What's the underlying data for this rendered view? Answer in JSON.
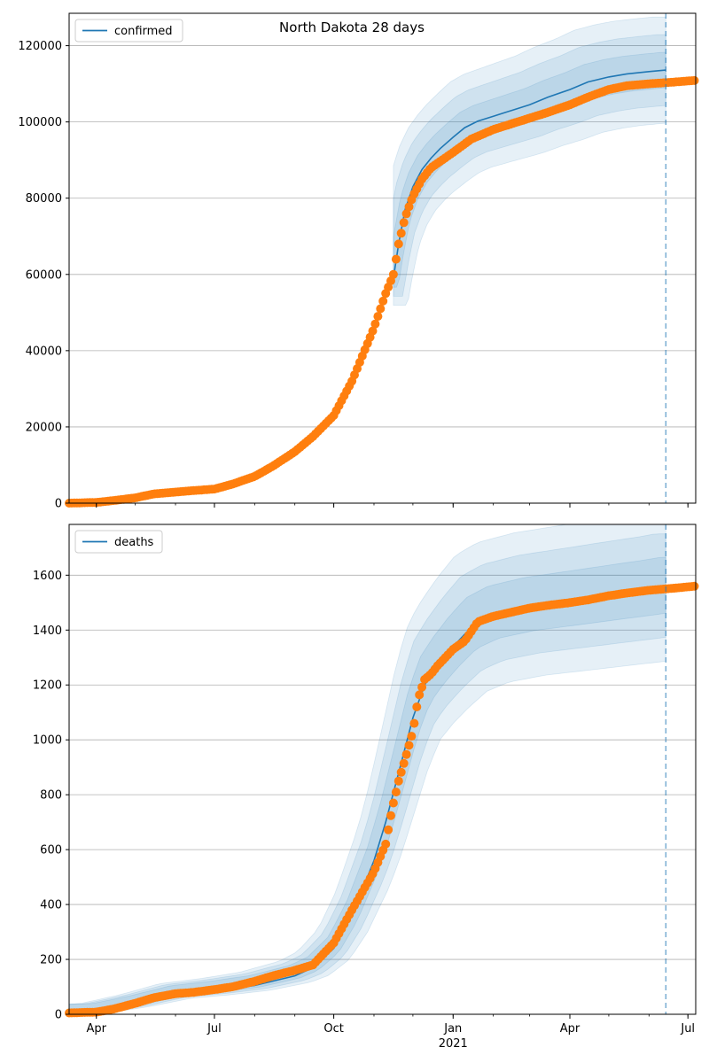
{
  "figure": {
    "title": "North Dakota 28 days"
  },
  "chart_data": [
    {
      "type": "line",
      "xlim": [
        "2020-03-11",
        "2021-07-07"
      ],
      "ylim": [
        0,
        128500
      ],
      "yticks": [
        0,
        20000,
        40000,
        60000,
        80000,
        100000,
        120000
      ],
      "xticks": [
        {
          "date": "2020-04-01",
          "label": ""
        },
        {
          "date": "2020-07-01",
          "label": ""
        },
        {
          "date": "2020-10-01",
          "label": ""
        },
        {
          "date": "2021-01-01",
          "label": ""
        },
        {
          "date": "2021-04-01",
          "label": ""
        },
        {
          "date": "2021-07-01",
          "label": ""
        }
      ],
      "grid": "horizontal",
      "legend_position": "top-left",
      "forecast_start": "2021-06-14",
      "series": [
        {
          "name": "confirmed",
          "kind": "model",
          "color": "#1f77b4",
          "x": [
            "2020-11-16",
            "2020-11-20",
            "2020-11-25",
            "2020-12-01",
            "2020-12-08",
            "2020-12-15",
            "2020-12-22",
            "2021-01-01",
            "2021-01-10",
            "2021-01-20",
            "2021-02-01",
            "2021-02-15",
            "2021-03-01",
            "2021-03-15",
            "2021-04-01",
            "2021-04-15",
            "2021-05-01",
            "2021-05-15",
            "2021-06-01",
            "2021-06-14"
          ],
          "y": [
            59000,
            68000,
            77000,
            83000,
            87500,
            90500,
            93000,
            96000,
            98500,
            100200,
            101500,
            103000,
            104500,
            106500,
            108500,
            110500,
            111800,
            112600,
            113200,
            113600
          ]
        },
        {
          "name": "",
          "kind": "observed",
          "color": "#ff7f0e",
          "x": [
            "2020-03-11",
            "2020-04-01",
            "2020-04-15",
            "2020-05-01",
            "2020-05-15",
            "2020-06-01",
            "2020-06-15",
            "2020-07-01",
            "2020-07-15",
            "2020-08-01",
            "2020-08-15",
            "2020-09-01",
            "2020-09-15",
            "2020-10-01",
            "2020-10-15",
            "2020-11-01",
            "2020-11-10",
            "2020-11-16",
            "2020-11-20",
            "2020-11-25",
            "2020-12-01",
            "2020-12-08",
            "2020-12-15",
            "2021-01-01",
            "2021-01-15",
            "2021-02-01",
            "2021-02-15",
            "2021-03-01",
            "2021-03-15",
            "2021-04-01",
            "2021-04-15",
            "2021-05-01",
            "2021-05-15",
            "2021-06-01",
            "2021-06-14",
            "2021-07-07"
          ],
          "y": [
            0,
            200,
            700,
            1400,
            2400,
            2900,
            3300,
            3700,
            5000,
            7000,
            9700,
            13500,
            17500,
            23000,
            32000,
            46000,
            55000,
            60000,
            68000,
            75000,
            80500,
            85000,
            88000,
            92000,
            95500,
            98000,
            99500,
            101000,
            102500,
            104500,
            106500,
            108500,
            109500,
            110000,
            110300,
            110900
          ]
        }
      ]
    },
    {
      "type": "line",
      "xlim": [
        "2020-03-11",
        "2021-07-07"
      ],
      "ylim": [
        0,
        1785
      ],
      "yticks": [
        0,
        200,
        400,
        600,
        800,
        1000,
        1200,
        1400,
        1600
      ],
      "xticks": [
        {
          "date": "2020-04-01",
          "label": "Apr"
        },
        {
          "date": "2020-07-01",
          "label": "Jul"
        },
        {
          "date": "2020-10-01",
          "label": "Oct"
        },
        {
          "date": "2021-01-01",
          "label": "Jan"
        },
        {
          "date": "2021-04-01",
          "label": "Apr"
        },
        {
          "date": "2021-07-01",
          "label": "Jul"
        }
      ],
      "year_label": {
        "date": "2021-01-01",
        "label": "2021"
      },
      "grid": "horizontal",
      "legend_position": "top-left",
      "forecast_start": "2021-06-14",
      "series": [
        {
          "name": "deaths",
          "kind": "model",
          "color": "#1f77b4",
          "x": [
            "2020-03-11",
            "2020-04-01",
            "2020-05-01",
            "2020-06-01",
            "2020-07-01",
            "2020-08-01",
            "2020-09-01",
            "2020-09-15",
            "2020-10-01",
            "2020-10-15",
            "2020-11-01",
            "2020-11-10",
            "2020-11-20",
            "2020-12-01",
            "2020-12-10",
            "2020-12-20",
            "2021-01-01",
            "2021-01-15",
            "2021-02-01",
            "2021-03-01",
            "2021-04-01",
            "2021-05-01",
            "2021-06-01",
            "2021-06-14"
          ],
          "y": [
            5,
            8,
            35,
            70,
            85,
            105,
            140,
            170,
            240,
            360,
            560,
            700,
            880,
            1080,
            1200,
            1270,
            1340,
            1410,
            1450,
            1480,
            1500,
            1520,
            1540,
            1550
          ]
        },
        {
          "name": "",
          "kind": "observed",
          "color": "#ff7f0e",
          "x": [
            "2020-03-11",
            "2020-04-01",
            "2020-04-15",
            "2020-05-01",
            "2020-05-15",
            "2020-06-01",
            "2020-06-15",
            "2020-07-01",
            "2020-07-15",
            "2020-08-01",
            "2020-08-15",
            "2020-09-01",
            "2020-09-15",
            "2020-10-01",
            "2020-10-15",
            "2020-11-01",
            "2020-11-10",
            "2020-11-15",
            "2020-11-20",
            "2020-11-25",
            "2020-12-01",
            "2020-12-05",
            "2020-12-10",
            "2020-12-15",
            "2020-12-20",
            "2021-01-01",
            "2021-01-10",
            "2021-01-20",
            "2021-02-01",
            "2021-02-15",
            "2021-03-01",
            "2021-03-15",
            "2021-04-01",
            "2021-04-15",
            "2021-05-01",
            "2021-05-15",
            "2021-06-01",
            "2021-06-14",
            "2021-07-07"
          ],
          "y": [
            5,
            8,
            20,
            40,
            60,
            75,
            80,
            90,
            100,
            120,
            140,
            160,
            180,
            260,
            380,
            520,
            620,
            750,
            850,
            930,
            1030,
            1150,
            1220,
            1240,
            1270,
            1330,
            1360,
            1430,
            1450,
            1465,
            1480,
            1490,
            1500,
            1510,
            1525,
            1535,
            1545,
            1550,
            1560
          ]
        }
      ]
    }
  ]
}
